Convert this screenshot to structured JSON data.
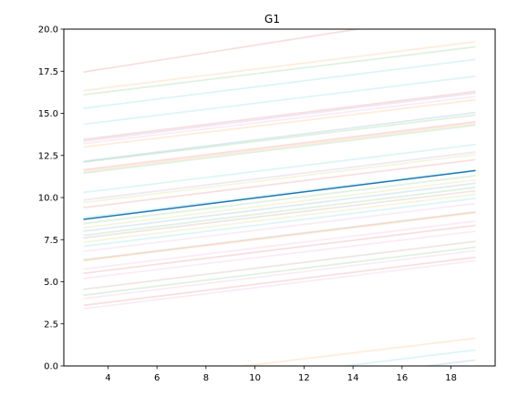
{
  "chart_data": {
    "type": "line",
    "title": "G1",
    "xlabel": "",
    "ylabel": "",
    "xlim": [
      2.2,
      19.8
    ],
    "ylim": [
      0,
      20
    ],
    "xticks": [
      4,
      6,
      8,
      10,
      12,
      14,
      16,
      18
    ],
    "yticks": [
      0.0,
      2.5,
      5.0,
      7.5,
      10.0,
      12.5,
      15.0,
      17.5,
      20.0
    ],
    "xtick_labels": [
      "4",
      "6",
      "8",
      "10",
      "12",
      "14",
      "16",
      "18"
    ],
    "ytick_labels": [
      "0.0",
      "2.5",
      "5.0",
      "7.5",
      "10.0",
      "12.5",
      "15.0",
      "17.5",
      "20.0"
    ],
    "grid": false,
    "x": [
      3,
      19
    ],
    "highlight_series": {
      "color": "#1f77b4",
      "values": [
        8.7,
        11.6
      ]
    },
    "background_series": [
      {
        "color": "#d62728",
        "values": [
          17.45,
          21.1
        ]
      },
      {
        "color": "#ff7f0e",
        "values": [
          16.35,
          19.25
        ]
      },
      {
        "color": "#2ca02c",
        "values": [
          16.1,
          18.95
        ]
      },
      {
        "color": "#17becf",
        "values": [
          15.3,
          18.2
        ]
      },
      {
        "color": "#17becf",
        "values": [
          14.35,
          17.2
        ]
      },
      {
        "color": "#d62728",
        "values": [
          13.45,
          16.3
        ]
      },
      {
        "color": "#9467bd",
        "values": [
          13.35,
          16.2
        ]
      },
      {
        "color": "#e377c2",
        "values": [
          13.2,
          16.0
        ]
      },
      {
        "color": "#ff7f0e",
        "values": [
          13.0,
          15.8
        ]
      },
      {
        "color": "#1f77b4",
        "values": [
          12.15,
          15.05
        ]
      },
      {
        "color": "#2ca02c",
        "values": [
          12.1,
          14.9
        ]
      },
      {
        "color": "#d62728",
        "values": [
          11.65,
          14.5
        ]
      },
      {
        "color": "#ff7f0e",
        "values": [
          11.55,
          14.4
        ]
      },
      {
        "color": "#2ca02c",
        "values": [
          11.45,
          14.3
        ]
      },
      {
        "color": "#17becf",
        "values": [
          10.3,
          13.15
        ]
      },
      {
        "color": "#9467bd",
        "values": [
          9.85,
          12.7
        ]
      },
      {
        "color": "#bcbd22",
        "values": [
          9.7,
          12.55
        ]
      },
      {
        "color": "#d62728",
        "values": [
          9.4,
          12.25
        ]
      },
      {
        "color": "#17becf",
        "values": [
          8.8,
          11.65
        ]
      },
      {
        "color": "#2ca02c",
        "values": [
          8.45,
          11.3
        ]
      },
      {
        "color": "#bcbd22",
        "values": [
          8.2,
          11.05
        ]
      },
      {
        "color": "#1f77b4",
        "values": [
          8.0,
          10.85
        ]
      },
      {
        "color": "#2ca02c",
        "values": [
          7.75,
          10.6
        ]
      },
      {
        "color": "#8c564b",
        "values": [
          7.6,
          10.4
        ]
      },
      {
        "color": "#bcbd22",
        "values": [
          7.35,
          10.2
        ]
      },
      {
        "color": "#17becf",
        "values": [
          7.1,
          9.95
        ]
      },
      {
        "color": "#e377c2",
        "values": [
          6.8,
          9.65
        ]
      },
      {
        "color": "#8c564b",
        "values": [
          6.3,
          9.15
        ]
      },
      {
        "color": "#ff7f0e",
        "values": [
          6.25,
          9.1
        ]
      },
      {
        "color": "#e377c2",
        "values": [
          5.75,
          8.6
        ]
      },
      {
        "color": "#d62728",
        "values": [
          5.5,
          8.35
        ]
      },
      {
        "color": "#e377c2",
        "values": [
          5.2,
          8.0
        ]
      },
      {
        "color": "#8c564b",
        "values": [
          4.55,
          7.4
        ]
      },
      {
        "color": "#2ca02c",
        "values": [
          4.2,
          7.05
        ]
      },
      {
        "color": "#e377c2",
        "values": [
          4.0,
          6.85
        ]
      },
      {
        "color": "#d62728",
        "values": [
          3.6,
          6.45
        ]
      },
      {
        "color": "#e377c2",
        "values": [
          3.4,
          6.25
        ]
      },
      {
        "color": "#ff7f0e",
        "values": [
          -1.15,
          1.65
        ]
      },
      {
        "color": "#17becf",
        "values": [
          -1.9,
          0.95
        ]
      },
      {
        "color": "#1f77b4",
        "values": [
          -2.5,
          0.35
        ]
      }
    ]
  }
}
